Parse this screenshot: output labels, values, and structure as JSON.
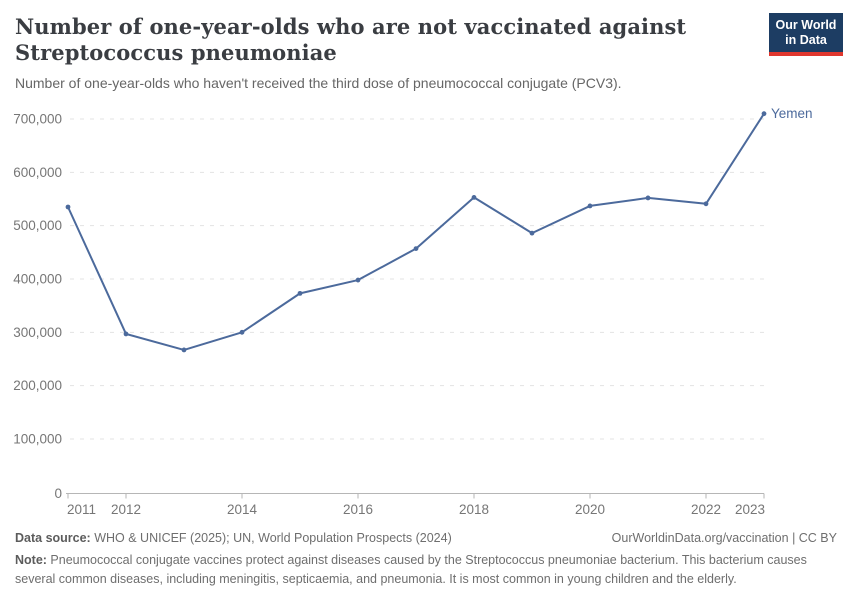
{
  "header": {
    "title": "Number of one-year-olds who are not vaccinated against Streptococcus pneumoniae",
    "subtitle": "Number of one-year-olds who haven't received the third dose of pneumococcal conjugate (PCV3).",
    "logo": {
      "line1": "Our World",
      "line2": "in Data",
      "bg_color": "#1d3d63",
      "bar_color": "#e0372e"
    }
  },
  "chart_data": {
    "type": "line",
    "title": "Number of one-year-olds who are not vaccinated against Streptococcus pneumoniae",
    "xlabel": "",
    "ylabel": "",
    "x": [
      2011,
      2012,
      2013,
      2014,
      2015,
      2016,
      2017,
      2018,
      2019,
      2020,
      2021,
      2022,
      2023
    ],
    "series": [
      {
        "name": "Yemen",
        "values": [
          535000,
          297000,
          267000,
          300000,
          373000,
          398000,
          457000,
          553000,
          486000,
          537000,
          552000,
          541000,
          710000
        ],
        "color": "#4C6A9C"
      }
    ],
    "end_label": "Yemen",
    "xlim": [
      2011,
      2023
    ],
    "ylim": [
      0,
      700000
    ],
    "x_ticks": [
      "2011",
      "2012",
      "2014",
      "2016",
      "2018",
      "2020",
      "2022",
      "2023"
    ],
    "y_ticks": [
      {
        "value": 0,
        "label": "0"
      },
      {
        "value": 100000,
        "label": "100,000"
      },
      {
        "value": 200000,
        "label": "200,000"
      },
      {
        "value": 300000,
        "label": "300,000"
      },
      {
        "value": 400000,
        "label": "400,000"
      },
      {
        "value": 500000,
        "label": "500,000"
      },
      {
        "value": 600000,
        "label": "600,000"
      },
      {
        "value": 700000,
        "label": "700,000"
      }
    ],
    "grid": "horizontal-dashed",
    "legend_position": "end-of-line-label"
  },
  "footer": {
    "data_source_label": "Data source:",
    "data_source_text": " WHO & UNICEF (2025); UN, World Population Prospects (2024)",
    "citation": "OurWorldinData.org/vaccination | CC BY",
    "note_label": "Note:",
    "note_text": " Pneumococcal conjugate vaccines protect against diseases caused by the Streptococcus pneumoniae bacterium. This bacterium causes several common diseases, including meningitis, septicaemia, and pneumonia. It is most common in young children and the elderly."
  },
  "colors": {
    "line": "#4C6A9C",
    "title_text": "#3a3d42",
    "subtitle_text": "#666666",
    "axis_text": "#767676",
    "gridline": "#e3e3e3",
    "axis_line": "#b6b6b6",
    "background": "#ffffff"
  }
}
